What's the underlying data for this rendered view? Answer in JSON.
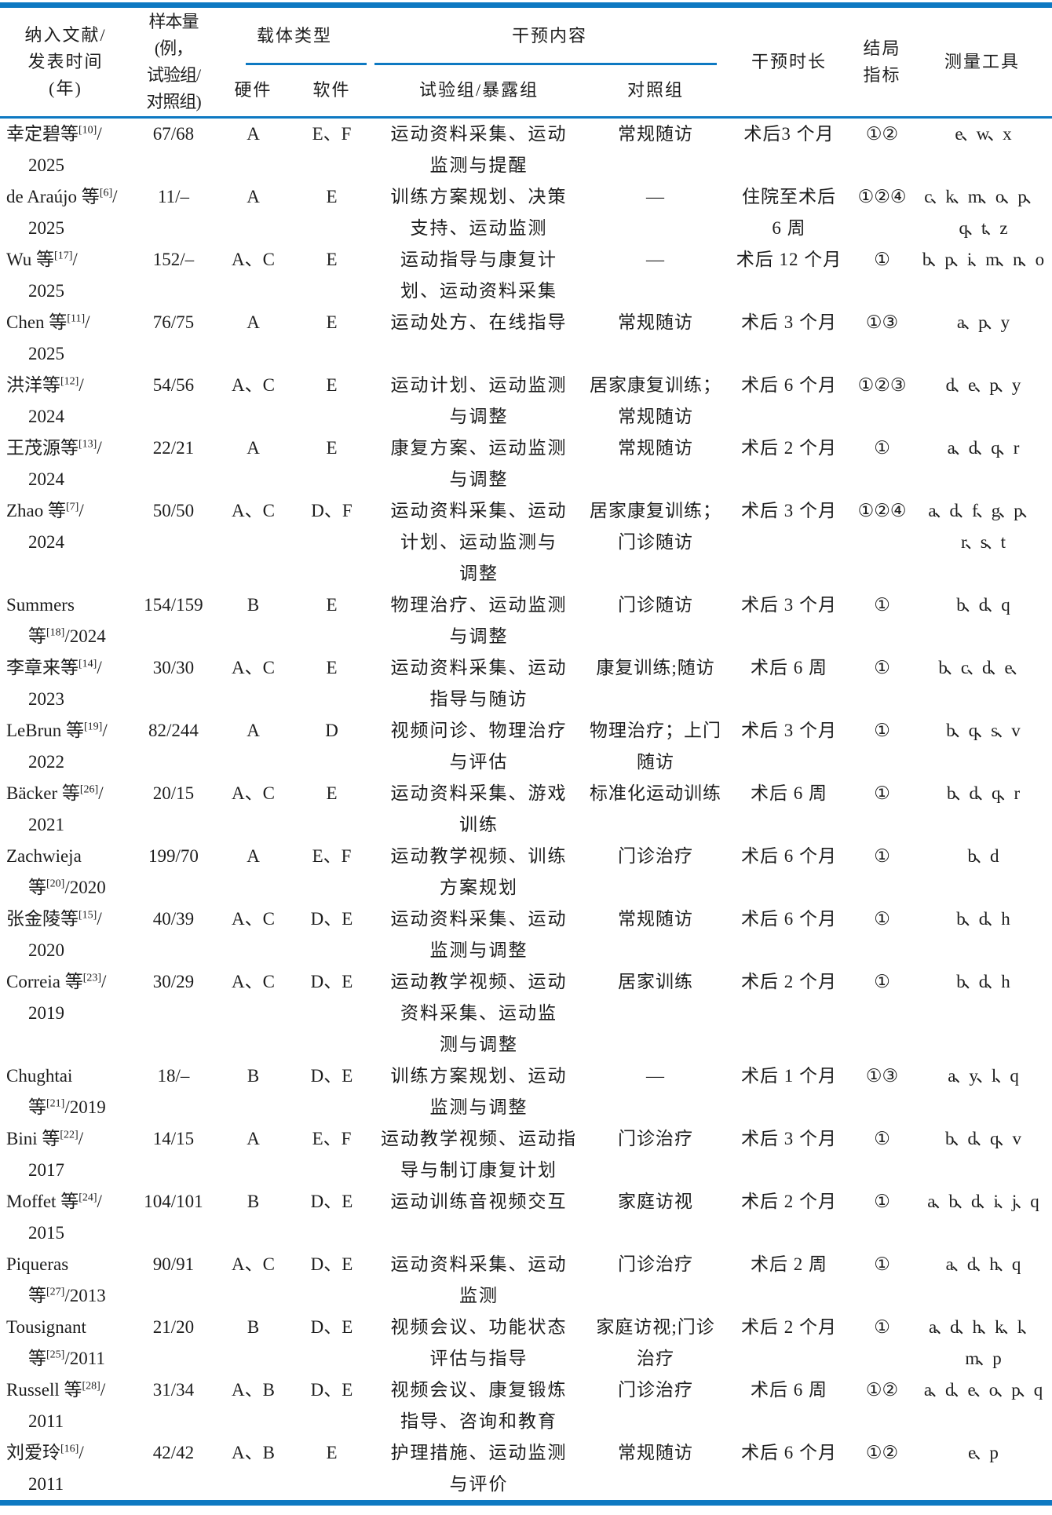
{
  "colors": {
    "accent_blue": "#0e79c2",
    "text": "#1d1d1d",
    "background": "#ffffff"
  },
  "table": {
    "header": {
      "col_study": "纳入文献/\n发表时间\n(年)",
      "col_sample": "样本量(例，\n试验组/\n对照组)",
      "group_carrier": "载体类型",
      "col_hardware": "硬件",
      "col_software": "软件",
      "group_intervention": "干预内容",
      "col_exp": "试验组/暴露组",
      "col_ctrl": "对照组",
      "col_duration": "干预时长",
      "col_outcome": "结局\n指标",
      "col_tools": "测量工具"
    },
    "rows": [
      {
        "study": [
          [
            {
              "t": "幸定碧等"
            },
            {
              "sup": "[10]"
            },
            {
              "t": "/"
            }
          ],
          [
            {
              "t": "2025"
            }
          ]
        ],
        "sample": "67/68",
        "hw": "A",
        "sw": "E、F",
        "exp": "运动资料采集、运动\n监测与提醒",
        "ctrl": "常规随访",
        "dur": "术后3 个月",
        "out": "①②",
        "tools": "e、w、x"
      },
      {
        "study": [
          [
            {
              "t": "de Araújo 等"
            },
            {
              "sup": "[6]"
            },
            {
              "t": "/"
            }
          ],
          [
            {
              "t": "2025"
            }
          ]
        ],
        "sample": "11/–",
        "hw": "A",
        "sw": "E",
        "exp": "训练方案规划、决策\n支持、运动监测",
        "ctrl": "—",
        "dur": "住院至术后\n6 周",
        "out": "①②④",
        "tools": "c、k、m、o、p、\nq、t、z"
      },
      {
        "study": [
          [
            {
              "t": "Wu 等"
            },
            {
              "sup": "[17]"
            },
            {
              "t": "/"
            }
          ],
          [
            {
              "t": "2025"
            }
          ]
        ],
        "sample": "152/–",
        "hw": "A、C",
        "sw": "E",
        "exp": "运动指导与康复计\n划、运动资料采集",
        "ctrl": "—",
        "dur": "术后 12 个月",
        "out": "①",
        "tools": "b、p、i、m、n、o"
      },
      {
        "study": [
          [
            {
              "t": "Chen 等"
            },
            {
              "sup": "[11]"
            },
            {
              "t": "/"
            }
          ],
          [
            {
              "t": "2025"
            }
          ]
        ],
        "sample": "76/75",
        "hw": "A",
        "sw": "E",
        "exp": "运动处方、在线指导",
        "ctrl": "常规随访",
        "dur": "术后 3 个月",
        "out": "①③",
        "tools": "a、p、y"
      },
      {
        "study": [
          [
            {
              "t": "洪洋等"
            },
            {
              "sup": "[12]"
            },
            {
              "t": "/"
            }
          ],
          [
            {
              "t": "2024"
            }
          ]
        ],
        "sample": "54/56",
        "hw": "A、C",
        "sw": "E",
        "exp": "运动计划、运动监测\n与调整",
        "ctrl": "居家康复训练；\n常规随访",
        "dur": "术后 6 个月",
        "out": "①②③",
        "tools": "d、e、p、y"
      },
      {
        "study": [
          [
            {
              "t": "王茂源等"
            },
            {
              "sup": "[13]"
            },
            {
              "t": "/"
            }
          ],
          [
            {
              "t": "2024"
            }
          ]
        ],
        "sample": "22/21",
        "hw": "A",
        "sw": "E",
        "exp": "康复方案、运动监测\n与调整",
        "ctrl": "常规随访",
        "dur": "术后 2 个月",
        "out": "①",
        "tools": "a、d、q、r"
      },
      {
        "study": [
          [
            {
              "t": "Zhao 等"
            },
            {
              "sup": "[7]"
            },
            {
              "t": "/"
            }
          ],
          [
            {
              "t": "2024"
            }
          ]
        ],
        "sample": "50/50",
        "hw": "A、C",
        "sw": "D、F",
        "exp": "运动资料采集、运动\n计划、运动监测与\n调整",
        "ctrl": "居家康复训练；\n门诊随访",
        "dur": "术后 3 个月",
        "out": "①②④",
        "tools": "a、d、f、g、p、\nr、s、t"
      },
      {
        "study": [
          [
            {
              "t": "Summers"
            }
          ],
          [
            {
              "t": "等"
            },
            {
              "sup": "[18]"
            },
            {
              "t": "/2024"
            }
          ]
        ],
        "sample": "154/159",
        "hw": "B",
        "sw": "E",
        "exp": "物理治疗、运动监测\n与调整",
        "ctrl": "门诊随访",
        "dur": "术后 3 个月",
        "out": "①",
        "tools": "b、d、q"
      },
      {
        "study": [
          [
            {
              "t": "李章来等"
            },
            {
              "sup": "[14]"
            },
            {
              "t": "/"
            }
          ],
          [
            {
              "t": "2023"
            }
          ]
        ],
        "sample": "30/30",
        "hw": "A、C",
        "sw": "E",
        "exp": "运动资料采集、运动\n指导与随访",
        "ctrl": "康复训练;随访",
        "dur": "术后 6 周",
        "out": "①",
        "tools": "b、c、d、e、"
      },
      {
        "study": [
          [
            {
              "t": "LeBrun 等"
            },
            {
              "sup": "[19]"
            },
            {
              "t": "/"
            }
          ],
          [
            {
              "t": "2022"
            }
          ]
        ],
        "sample": "82/244",
        "hw": "A",
        "sw": "D",
        "exp": "视频问诊、物理治疗\n与评估",
        "ctrl": "物理治疗；上门\n随访",
        "dur": "术后 3 个月",
        "out": "①",
        "tools": "b、q、s、v"
      },
      {
        "study": [
          [
            {
              "t": "Bäcker 等"
            },
            {
              "sup": "[26]"
            },
            {
              "t": "/"
            }
          ],
          [
            {
              "t": "2021"
            }
          ]
        ],
        "sample": "20/15",
        "hw": "A、C",
        "sw": "E",
        "exp": "运动资料采集、游戏\n训练",
        "ctrl": "标准化运动训练",
        "dur": "术后 6 周",
        "out": "①",
        "tools": "b、d、q、r"
      },
      {
        "study": [
          [
            {
              "t": "Zachwieja"
            }
          ],
          [
            {
              "t": "等"
            },
            {
              "sup": "[20]"
            },
            {
              "t": "/2020"
            }
          ]
        ],
        "sample": "199/70",
        "hw": "A",
        "sw": "E、F",
        "exp": "运动教学视频、训练\n方案规划",
        "ctrl": "门诊治疗",
        "dur": "术后 6 个月",
        "out": "①",
        "tools": "b、d"
      },
      {
        "study": [
          [
            {
              "t": "张金陵等"
            },
            {
              "sup": "[15]"
            },
            {
              "t": "/"
            }
          ],
          [
            {
              "t": "2020"
            }
          ]
        ],
        "sample": "40/39",
        "hw": "A、C",
        "sw": "D、E",
        "exp": "运动资料采集、运动\n监测与调整",
        "ctrl": "常规随访",
        "dur": "术后 6 个月",
        "out": "①",
        "tools": "b、d、h"
      },
      {
        "study": [
          [
            {
              "t": "Correia 等"
            },
            {
              "sup": "[23]"
            },
            {
              "t": "/"
            }
          ],
          [
            {
              "t": "2019"
            }
          ]
        ],
        "sample": "30/29",
        "hw": "A、C",
        "sw": "D、E",
        "exp": "运动教学视频、运动\n资料采集、运动监\n测与调整",
        "ctrl": "居家训练",
        "dur": "术后 2 个月",
        "out": "①",
        "tools": "b、d、h"
      },
      {
        "study": [
          [
            {
              "t": "Chughtai"
            }
          ],
          [
            {
              "t": "等"
            },
            {
              "sup": "[21]"
            },
            {
              "t": "/2019"
            }
          ]
        ],
        "sample": "18/–",
        "hw": "B",
        "sw": "D、E",
        "exp": "训练方案规划、运动\n监测与调整",
        "ctrl": "—",
        "dur": "术后 1 个月",
        "out": "①③",
        "tools": "a、y、l、q"
      },
      {
        "study": [
          [
            {
              "t": "Bini 等"
            },
            {
              "sup": "[22]"
            },
            {
              "t": "/"
            }
          ],
          [
            {
              "t": "2017"
            }
          ]
        ],
        "sample": "14/15",
        "hw": "A",
        "sw": "E、F",
        "exp": "运动教学视频、运动指\n导与制订康复计划",
        "ctrl": "门诊治疗",
        "dur": "术后 3 个月",
        "out": "①",
        "tools": "b、d、q、v"
      },
      {
        "study": [
          [
            {
              "t": "Moffet 等"
            },
            {
              "sup": "[24]"
            },
            {
              "t": "/"
            }
          ],
          [
            {
              "t": "2015"
            }
          ]
        ],
        "sample": "104/101",
        "hw": "B",
        "sw": "D、E",
        "exp": "运动训练音视频交互",
        "ctrl": "家庭访视",
        "dur": "术后 2 个月",
        "out": "①",
        "tools": "a、b、d、i、j、q"
      },
      {
        "study": [
          [
            {
              "t": "Piqueras"
            }
          ],
          [
            {
              "t": "等"
            },
            {
              "sup": "[27]"
            },
            {
              "t": "/2013"
            }
          ]
        ],
        "sample": "90/91",
        "hw": "A、C",
        "sw": "D、E",
        "exp": "运动资料采集、运动\n监测",
        "ctrl": "门诊治疗",
        "dur": "术后 2 周",
        "out": "①",
        "tools": "a、d、h、q"
      },
      {
        "study": [
          [
            {
              "t": "Tousignant"
            }
          ],
          [
            {
              "t": "等"
            },
            {
              "sup": "[25]"
            },
            {
              "t": "/2011"
            }
          ]
        ],
        "sample": "21/20",
        "hw": "B",
        "sw": "D、E",
        "exp": "视频会议、功能状态\n评估与指导",
        "ctrl": "家庭访视;门诊\n治疗",
        "dur": "术后 2 个月",
        "out": "①",
        "tools": "a、d、h、k、l、\nm、p"
      },
      {
        "study": [
          [
            {
              "t": "Russell 等"
            },
            {
              "sup": "[28]"
            },
            {
              "t": "/"
            }
          ],
          [
            {
              "t": "2011"
            }
          ]
        ],
        "sample": "31/34",
        "hw": "A、B",
        "sw": "D、E",
        "exp": "视频会议、康复锻炼\n指导、咨询和教育",
        "ctrl": "门诊治疗",
        "dur": "术后 6 周",
        "out": "①②",
        "tools": "a、d、e、o、p、q"
      },
      {
        "study": [
          [
            {
              "t": "刘爱玲"
            },
            {
              "sup": "[16]"
            },
            {
              "t": "/"
            }
          ],
          [
            {
              "t": "2011"
            }
          ]
        ],
        "sample": "42/42",
        "hw": "A、B",
        "sw": "E",
        "exp": "护理措施、运动监测\n与评价",
        "ctrl": "常规随访",
        "dur": "术后 6 个月",
        "out": "①②",
        "tools": "e、p"
      }
    ]
  }
}
